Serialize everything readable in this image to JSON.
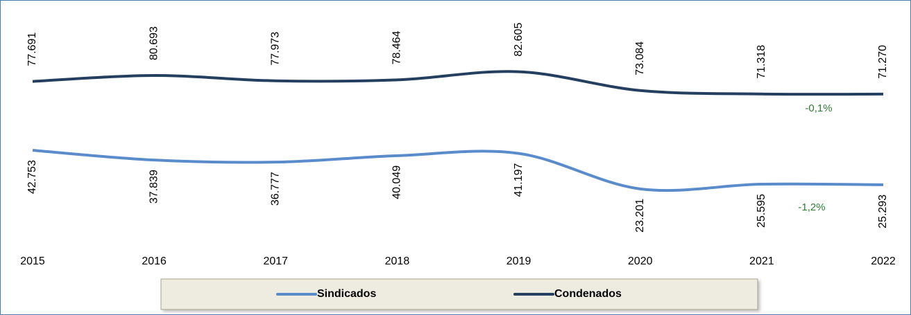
{
  "chart_data": {
    "type": "line",
    "categories": [
      "2015",
      "2016",
      "2017",
      "2018",
      "2019",
      "2020",
      "2021",
      "2022"
    ],
    "series": [
      {
        "name": "Sindicados",
        "color": "#5a8ccc",
        "values": [
          42753,
          37839,
          36777,
          40049,
          41197,
          23201,
          25595,
          25293
        ],
        "value_labels": [
          "42.753",
          "37.839",
          "36.777",
          "40.049",
          "41.197",
          "23.201",
          "25.595",
          "25.293"
        ]
      },
      {
        "name": "Condenados",
        "color": "#253f61",
        "values": [
          77691,
          80693,
          77973,
          78464,
          82605,
          73084,
          71318,
          71270
        ],
        "value_labels": [
          "77.691",
          "80.693",
          "77.973",
          "78.464",
          "82.605",
          "73.084",
          "71.318",
          "71.270"
        ]
      }
    ],
    "ylim": [
      0,
      100000
    ],
    "annotations": [
      "-0,1%",
      "-1,2%"
    ]
  }
}
